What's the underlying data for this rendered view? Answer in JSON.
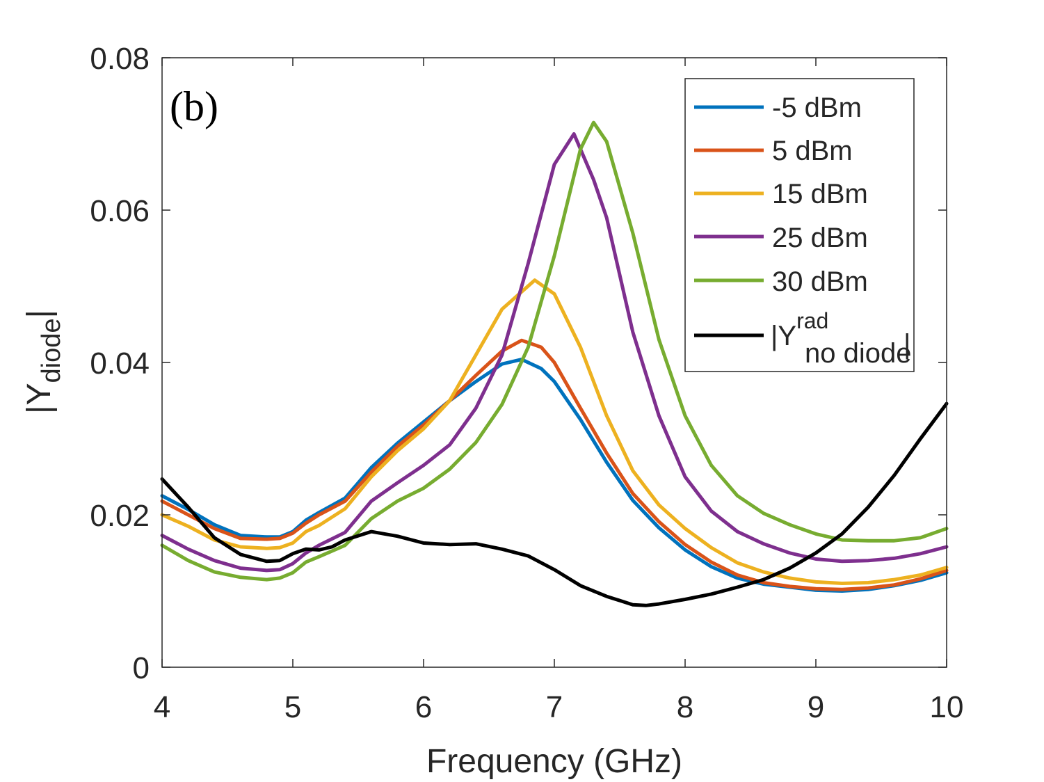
{
  "chart_data": {
    "type": "line",
    "panel_label": "(b)",
    "xlabel": "Frequency (GHz)",
    "ylabel": {
      "main": "|Y",
      "sub": "diode",
      "end": "|"
    },
    "xlim": [
      4,
      10
    ],
    "ylim": [
      0,
      0.08
    ],
    "xticks": [
      4,
      5,
      6,
      7,
      8,
      9,
      10
    ],
    "yticks": [
      0,
      0.02,
      0.04,
      0.06,
      0.08
    ],
    "xtick_labels": [
      "4",
      "5",
      "6",
      "7",
      "8",
      "9",
      "10"
    ],
    "ytick_labels": [
      "0",
      "0.02",
      "0.04",
      "0.06",
      "0.08"
    ],
    "legend_position": "top-right",
    "series": [
      {
        "name": "-5 dBm",
        "color": "#0072BD",
        "x": [
          4.0,
          4.2,
          4.4,
          4.6,
          4.8,
          4.9,
          5.0,
          5.1,
          5.2,
          5.4,
          5.6,
          5.8,
          6.0,
          6.2,
          6.4,
          6.6,
          6.75,
          6.9,
          7.0,
          7.2,
          7.4,
          7.6,
          7.8,
          8.0,
          8.2,
          8.4,
          8.6,
          8.8,
          9.0,
          9.2,
          9.4,
          9.6,
          9.8,
          10.0
        ],
        "y": [
          0.0225,
          0.0207,
          0.0187,
          0.0173,
          0.0171,
          0.0171,
          0.0178,
          0.0193,
          0.0203,
          0.0222,
          0.0262,
          0.0294,
          0.0322,
          0.035,
          0.0375,
          0.0398,
          0.0404,
          0.0392,
          0.0375,
          0.0325,
          0.0269,
          0.0219,
          0.0183,
          0.0154,
          0.0132,
          0.0117,
          0.0109,
          0.0105,
          0.0101,
          0.01,
          0.0102,
          0.0107,
          0.0114,
          0.0124
        ]
      },
      {
        "name": "5 dBm",
        "color": "#D95319",
        "x": [
          4.0,
          4.2,
          4.4,
          4.6,
          4.8,
          4.9,
          5.0,
          5.1,
          5.2,
          5.4,
          5.6,
          5.8,
          6.0,
          6.2,
          6.4,
          6.6,
          6.75,
          6.9,
          7.0,
          7.2,
          7.4,
          7.6,
          7.8,
          8.0,
          8.2,
          8.4,
          8.6,
          8.8,
          9.0,
          9.2,
          9.4,
          9.6,
          9.8,
          10.0
        ],
        "y": [
          0.0218,
          0.02,
          0.0182,
          0.0169,
          0.0168,
          0.0169,
          0.0176,
          0.0189,
          0.02,
          0.0218,
          0.0256,
          0.029,
          0.0318,
          0.035,
          0.0383,
          0.0415,
          0.0429,
          0.042,
          0.04,
          0.034,
          0.0281,
          0.0228,
          0.0191,
          0.0161,
          0.0138,
          0.0121,
          0.0111,
          0.0106,
          0.0103,
          0.0102,
          0.0104,
          0.0108,
          0.0116,
          0.0127
        ]
      },
      {
        "name": "15 dBm",
        "color": "#EDB120",
        "x": [
          4.0,
          4.2,
          4.4,
          4.6,
          4.8,
          4.9,
          5.0,
          5.1,
          5.2,
          5.4,
          5.6,
          5.8,
          6.0,
          6.2,
          6.4,
          6.6,
          6.85,
          7.0,
          7.2,
          7.4,
          7.6,
          7.8,
          8.0,
          8.2,
          8.4,
          8.6,
          8.8,
          9.0,
          9.2,
          9.4,
          9.6,
          9.8,
          10.0
        ],
        "y": [
          0.02,
          0.0185,
          0.0167,
          0.0158,
          0.0156,
          0.0157,
          0.0163,
          0.0178,
          0.0186,
          0.0208,
          0.025,
          0.0284,
          0.0313,
          0.035,
          0.041,
          0.047,
          0.0508,
          0.049,
          0.042,
          0.033,
          0.0258,
          0.0213,
          0.0182,
          0.0157,
          0.0137,
          0.0125,
          0.0117,
          0.0112,
          0.011,
          0.0111,
          0.0115,
          0.0121,
          0.0131
        ]
      },
      {
        "name": "25 dBm",
        "color": "#7E2F8E",
        "x": [
          4.0,
          4.2,
          4.4,
          4.6,
          4.8,
          4.9,
          5.0,
          5.1,
          5.2,
          5.4,
          5.6,
          5.8,
          6.0,
          6.2,
          6.4,
          6.6,
          6.8,
          7.0,
          7.15,
          7.3,
          7.4,
          7.6,
          7.8,
          8.0,
          8.2,
          8.4,
          8.6,
          8.8,
          9.0,
          9.2,
          9.4,
          9.6,
          9.8,
          10.0
        ],
        "y": [
          0.0173,
          0.0155,
          0.014,
          0.013,
          0.0127,
          0.0128,
          0.0136,
          0.015,
          0.016,
          0.0177,
          0.0218,
          0.0242,
          0.0265,
          0.0292,
          0.034,
          0.041,
          0.053,
          0.066,
          0.07,
          0.064,
          0.059,
          0.044,
          0.033,
          0.025,
          0.0205,
          0.0178,
          0.0162,
          0.015,
          0.0142,
          0.0139,
          0.014,
          0.0143,
          0.0149,
          0.0158
        ]
      },
      {
        "name": "30 dBm",
        "color": "#77AC30",
        "x": [
          4.0,
          4.2,
          4.4,
          4.6,
          4.8,
          4.9,
          5.0,
          5.1,
          5.2,
          5.4,
          5.6,
          5.8,
          6.0,
          6.2,
          6.4,
          6.6,
          6.8,
          7.0,
          7.2,
          7.3,
          7.4,
          7.6,
          7.8,
          8.0,
          8.2,
          8.4,
          8.6,
          8.8,
          9.0,
          9.2,
          9.4,
          9.6,
          9.8,
          10.0
        ],
        "y": [
          0.016,
          0.014,
          0.0125,
          0.0118,
          0.0115,
          0.0117,
          0.0124,
          0.0138,
          0.0145,
          0.016,
          0.0195,
          0.0218,
          0.0235,
          0.026,
          0.0295,
          0.0345,
          0.042,
          0.054,
          0.068,
          0.0715,
          0.069,
          0.057,
          0.043,
          0.033,
          0.0265,
          0.0225,
          0.0202,
          0.0187,
          0.0175,
          0.0167,
          0.0166,
          0.0166,
          0.017,
          0.0182
        ]
      },
      {
        "name": "|Y rad no diode|",
        "color": "#000000",
        "x": [
          4.0,
          4.2,
          4.4,
          4.6,
          4.8,
          4.9,
          5.0,
          5.1,
          5.2,
          5.3,
          5.4,
          5.6,
          5.8,
          6.0,
          6.2,
          6.4,
          6.6,
          6.8,
          7.0,
          7.2,
          7.4,
          7.6,
          7.7,
          7.8,
          8.0,
          8.2,
          8.4,
          8.6,
          8.8,
          9.0,
          9.2,
          9.4,
          9.6,
          9.8,
          10.0
        ],
        "y": [
          0.0247,
          0.021,
          0.017,
          0.0148,
          0.0139,
          0.014,
          0.0149,
          0.0155,
          0.0154,
          0.0158,
          0.0167,
          0.0178,
          0.0172,
          0.0163,
          0.0161,
          0.0162,
          0.0155,
          0.0146,
          0.0128,
          0.0107,
          0.0093,
          0.0082,
          0.0081,
          0.0083,
          0.0089,
          0.0096,
          0.0105,
          0.0115,
          0.013,
          0.015,
          0.0175,
          0.021,
          0.0252,
          0.03,
          0.0346
        ]
      }
    ],
    "legend": [
      {
        "label": "-5 dBm",
        "color": "#0072BD"
      },
      {
        "label": "5 dBm",
        "color": "#D95319"
      },
      {
        "label": "15 dBm",
        "color": "#EDB120"
      },
      {
        "label": "25 dBm",
        "color": "#7E2F8E"
      },
      {
        "label": "30 dBm",
        "color": "#77AC30"
      },
      {
        "label": {
          "pre": "|Y",
          "sup": "rad",
          "sub": "no diode",
          "post": "|"
        },
        "color": "#000000"
      }
    ]
  }
}
